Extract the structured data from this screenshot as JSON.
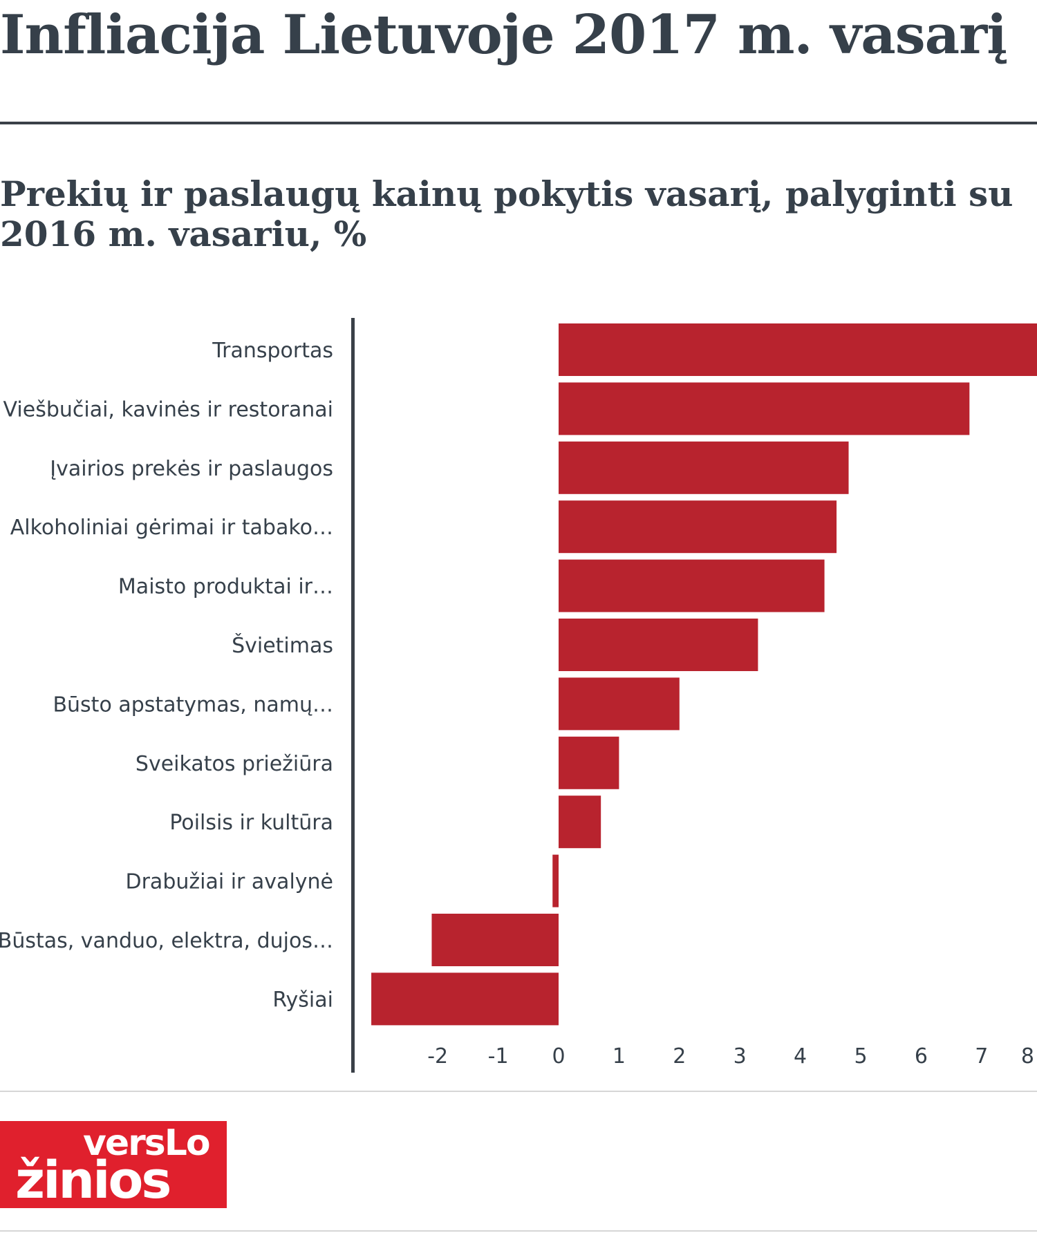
{
  "header": {
    "title": "Infliacija Lietuvoje 2017 m. vasarį",
    "subtitle": "Prekių ir paslaugų kainų pokytis vasarį, palyginti su 2016 m. vasariu, %"
  },
  "logo": {
    "line1": "versLo",
    "line2": "žinios"
  },
  "colors": {
    "bar": "#b8232e",
    "axis": "#3a4048",
    "text": "#36404a"
  },
  "chart_data": {
    "type": "bar",
    "orientation": "horizontal",
    "title": "Prekių ir paslaugų kainų pokytis vasarį, palyginti su 2016 m. vasariu, %",
    "categories": [
      "Transportas",
      "Viešbučiai, kavinės ir restoranai",
      "Įvairios prekės ir paslaugos",
      "Alkoholiniai gėrimai ir tabako…",
      "Maisto produktai ir…",
      "Švietimas",
      "Būsto apstatymas, namų…",
      "Sveikatos priežiūra",
      "Poilsis ir kultūra",
      "Drabužiai ir avalynė",
      "Būstas, vanduo, elektra, dujos…",
      "Ryšiai"
    ],
    "values": [
      8.1,
      6.8,
      4.8,
      4.6,
      4.4,
      3.3,
      2.0,
      1.0,
      0.7,
      -0.1,
      -2.1,
      -3.1
    ],
    "xlim": [
      -3.2,
      8
    ],
    "xticks": [
      "-2",
      "-1",
      "0",
      "1",
      "2",
      "3",
      "4",
      "5",
      "6",
      "7",
      "8"
    ],
    "grid": false,
    "legend": "none"
  }
}
